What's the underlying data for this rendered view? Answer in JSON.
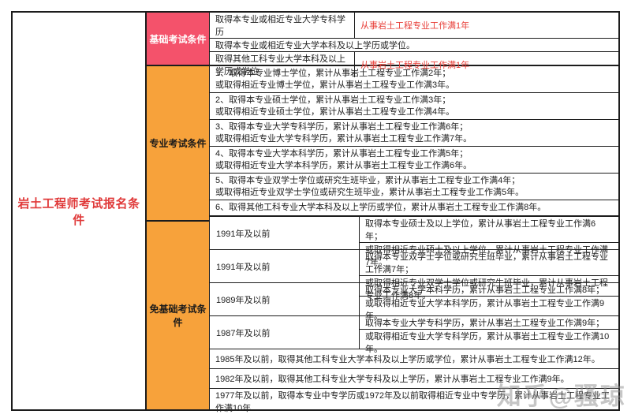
{
  "page_title": "岩土工程师考试报名条件",
  "colors": {
    "basic_section_bg": "#f4526b",
    "orange_section_bg": "#f7a23b",
    "title_red": "#e03a3a",
    "highlight_red_text": "#e8403a",
    "border": "#1c1c1c"
  },
  "sections": {
    "basic": {
      "label": "基础考试条件",
      "rows": [
        {
          "left": "取得本专业或相近专业大学专科学历",
          "right": "从事岩土工程专业工作满1年"
        },
        {
          "full": "取得本专业或相近专业大学本科及以上学历或学位。"
        },
        {
          "left": "取得其他工科专业大学本科及以上学历或学位",
          "right": "从事岩土工程专业工作满1年"
        }
      ]
    },
    "professional": {
      "label": "专业考试条件",
      "rows": [
        {
          "line1": "1、取得本专业博士学位，累计从事岩土工程专业工作满2年；",
          "line2": "或取得相近专业博士学位，累计从事岩土工程专业工作满3年。"
        },
        {
          "line1": "2、取得本专业硕士学位，累计从事岩土工程专业工作满3年；",
          "line2": "或取得相近专业硕士学位，累计从事岩土工程专业工作满4年。"
        },
        {
          "line1": "3、取得本专业大学专科学历，累计从事岩土工程专业工作满6年；",
          "line2": "或取得相近专业大学专科学历，累计从事岩土工程专业工作满7年。"
        },
        {
          "line1": "4、取得本专业大学本科学历，累计从事岩土工程专业工作满5年；",
          "line2": "或取得相近专业大学本科学历，累计从事岩土工程专业工作满6年。"
        },
        {
          "line1": "5、取得本专业双学士学位或研究生班毕业，累计从事岩土工程专业工作满4年；",
          "line2": "或取得相近专业双学士学位或研究生班毕业，累计从事岩土工程专业工作满5年。"
        },
        {
          "single": "6、取得其他工科专业大学本科及以上学历或学位，累计从事岩土工程专业工作满8年。"
        }
      ]
    },
    "exempt": {
      "label": "免基础考试条件",
      "rows": [
        {
          "year": "1991年及以前",
          "line1": "取得本专业硕士及以上学位，累计从事岩土工程专业工作满6年；",
          "line2": "或取得相近专业硕士及以上学位，累计从事岩土工程专业工作满7年。"
        },
        {
          "year": "1991年及以前",
          "line1": "取得本专业双学士学位或研究生班毕业，累计从事岩土工程专业工作满7年；",
          "line2": "或取得相近专业双学士学位或研究生班毕业，累计从事岩土工程专业工作满8年。"
        },
        {
          "year": "1989年及以前",
          "line1": "取得本专业大学本科学历，累计从事岩土工程专业工作满8年；",
          "line2": "或取得相近专业大学本科学历，累计从事岩土工程专业工作满9年。"
        },
        {
          "year": "1987年及以前",
          "line1": "取得本专业大学专科学历，累计从事岩土工程专业工作满9年；",
          "line2": "或取得相近专业大学专科学历，累计从事岩土工程专业工作满10年。"
        },
        {
          "full": "1985年及以前，取得其他工科专业大学本科及以上学历或学位，累计从事岩土工程专业工作满12年。"
        },
        {
          "full": "1982年及以前，取得其他工科专业大学专科及以上学历，累计从事岩土工程专业工作满9年。"
        },
        {
          "full": "1977年及以前，取得本专业中专学历或1972年及以前取得相近专业中专学历，累计从事岩土工程专业工作满10年"
        }
      ]
    }
  },
  "watermark": "知乎@骚琼"
}
